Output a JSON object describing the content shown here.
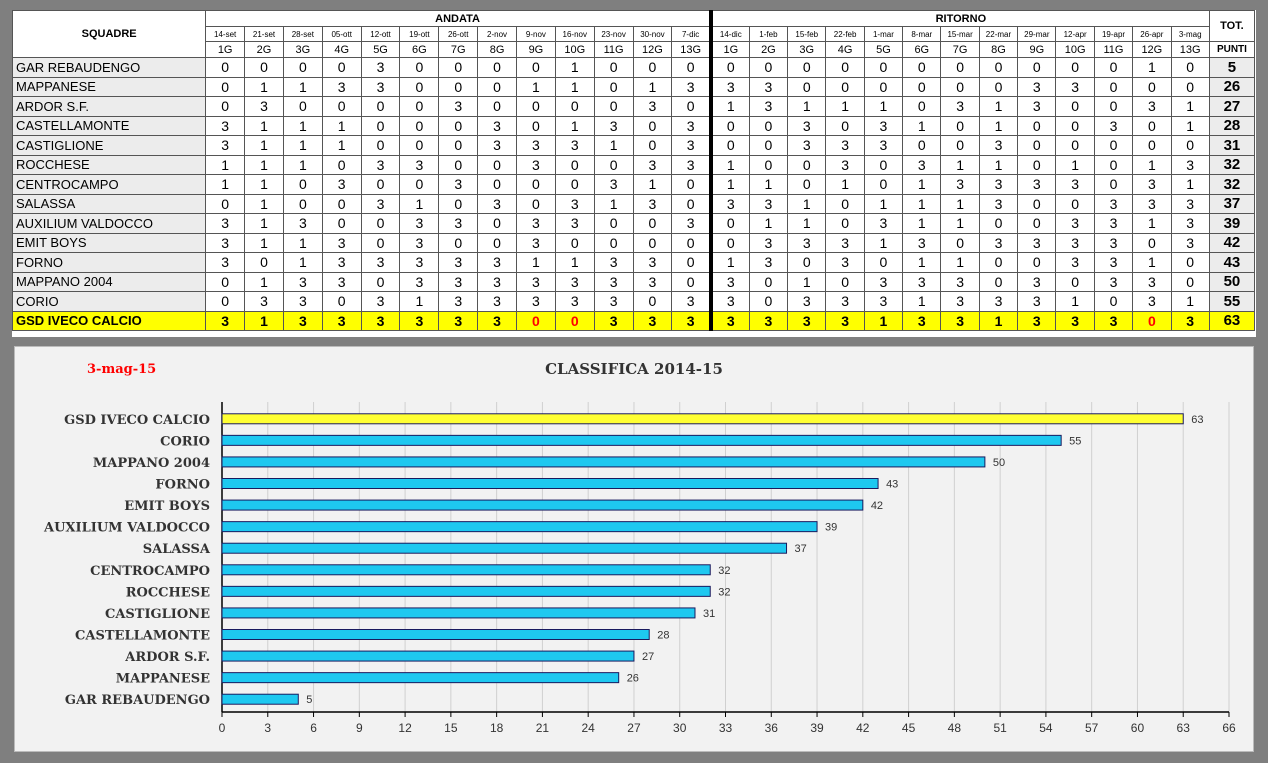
{
  "table": {
    "squadre_label": "SQUADRE",
    "andata_label": "ANDATA",
    "ritorno_label": "RITORNO",
    "tot_label": "TOT.",
    "punti_label": "PUNTI",
    "andata_dates": [
      "14-set",
      "21-set",
      "28-set",
      "05-ott",
      "12-ott",
      "19-ott",
      "26-ott",
      "2-nov",
      "9-nov",
      "16-nov",
      "23-nov",
      "30-nov",
      "7-dic"
    ],
    "ritorno_dates": [
      "14-dic",
      "1-feb",
      "15-feb",
      "22-feb",
      "1-mar",
      "8-mar",
      "15-mar",
      "22-mar",
      "29-mar",
      "12-apr",
      "19-apr",
      "26-apr",
      "3-mag"
    ],
    "rounds": [
      "1G",
      "2G",
      "3G",
      "4G",
      "5G",
      "6G",
      "7G",
      "8G",
      "9G",
      "10G",
      "11G",
      "12G",
      "13G"
    ],
    "rows": [
      {
        "name": "GAR REBAUDENGO",
        "andata": [
          "0",
          "0",
          "0",
          "0",
          "3",
          "0",
          "0",
          "0",
          "0",
          "1",
          "0",
          "0",
          "0"
        ],
        "ritorno": [
          "0",
          "0",
          "0",
          "0",
          "0",
          "0",
          "0",
          "0",
          "0",
          "0",
          "0",
          "1",
          "0"
        ],
        "tot": "5"
      },
      {
        "name": "MAPPANESE",
        "andata": [
          "0",
          "1",
          "1",
          "3",
          "3",
          "0",
          "0",
          "0",
          "1",
          "1",
          "0",
          "1",
          "3"
        ],
        "ritorno": [
          "3",
          "3",
          "0",
          "0",
          "0",
          "0",
          "0",
          "0",
          "3",
          "3",
          "0",
          "0",
          "0"
        ],
        "tot": "26"
      },
      {
        "name": "ARDOR S.F.",
        "andata": [
          "0",
          "3",
          "0",
          "0",
          "0",
          "0",
          "3",
          "0",
          "0",
          "0",
          "0",
          "3",
          "0"
        ],
        "ritorno": [
          "1",
          "3",
          "1",
          "1",
          "1",
          "0",
          "3",
          "1",
          "3",
          "0",
          "0",
          "3",
          "1"
        ],
        "tot": "27"
      },
      {
        "name": "CASTELLAMONTE",
        "andata": [
          "3",
          "1",
          "1",
          "1",
          "0",
          "0",
          "0",
          "3",
          "0",
          "1",
          "3",
          "0",
          "3"
        ],
        "ritorno": [
          "0",
          "0",
          "3",
          "0",
          "3",
          "1",
          "0",
          "1",
          "0",
          "0",
          "3",
          "0",
          "1"
        ],
        "tot": "28"
      },
      {
        "name": "CASTIGLIONE",
        "andata": [
          "3",
          "1",
          "1",
          "1",
          "0",
          "0",
          "0",
          "3",
          "3",
          "3",
          "1",
          "0",
          "3"
        ],
        "ritorno": [
          "0",
          "0",
          "3",
          "3",
          "3",
          "0",
          "0",
          "3",
          "0",
          "0",
          "0",
          "0",
          "0"
        ],
        "tot": "31"
      },
      {
        "name": "ROCCHESE",
        "andata": [
          "1",
          "1",
          "1",
          "0",
          "3",
          "3",
          "0",
          "0",
          "3",
          "0",
          "0",
          "3",
          "3"
        ],
        "ritorno": [
          "1",
          "0",
          "0",
          "3",
          "0",
          "3",
          "1",
          "1",
          "0",
          "1",
          "0",
          "1",
          "3"
        ],
        "tot": "32"
      },
      {
        "name": "CENTROCAMPO",
        "andata": [
          "1",
          "1",
          "0",
          "3",
          "0",
          "0",
          "3",
          "0",
          "0",
          "0",
          "3",
          "1",
          "0"
        ],
        "ritorno": [
          "1",
          "1",
          "0",
          "1",
          "0",
          "1",
          "3",
          "3",
          "3",
          "3",
          "0",
          "3",
          "1"
        ],
        "tot": "32"
      },
      {
        "name": "SALASSA",
        "andata": [
          "0",
          "1",
          "0",
          "0",
          "3",
          "1",
          "0",
          "3",
          "0",
          "3",
          "1",
          "3",
          "0"
        ],
        "ritorno": [
          "3",
          "3",
          "1",
          "0",
          "1",
          "1",
          "1",
          "3",
          "0",
          "0",
          "3",
          "3",
          "3"
        ],
        "tot": "37"
      },
      {
        "name": "AUXILIUM VALDOCCO",
        "andata": [
          "3",
          "1",
          "3",
          "0",
          "0",
          "3",
          "3",
          "0",
          "3",
          "3",
          "0",
          "0",
          "3"
        ],
        "ritorno": [
          "0",
          "1",
          "1",
          "0",
          "3",
          "1",
          "1",
          "0",
          "0",
          "3",
          "3",
          "1",
          "3"
        ],
        "tot": "39"
      },
      {
        "name": "EMIT BOYS",
        "andata": [
          "3",
          "1",
          "1",
          "3",
          "0",
          "3",
          "0",
          "0",
          "3",
          "0",
          "0",
          "0",
          "0"
        ],
        "ritorno": [
          "0",
          "3",
          "3",
          "3",
          "1",
          "3",
          "0",
          "3",
          "3",
          "3",
          "3",
          "0",
          "3"
        ],
        "tot": "42"
      },
      {
        "name": "FORNO",
        "andata": [
          "3",
          "0",
          "1",
          "3",
          "3",
          "3",
          "3",
          "3",
          "1",
          "1",
          "3",
          "3",
          "0"
        ],
        "ritorno": [
          "1",
          "3",
          "0",
          "3",
          "0",
          "1",
          "1",
          "0",
          "0",
          "3",
          "3",
          "1",
          "0"
        ],
        "tot": "43"
      },
      {
        "name": "MAPPANO 2004",
        "andata": [
          "0",
          "1",
          "3",
          "3",
          "0",
          "3",
          "3",
          "3",
          "3",
          "3",
          "3",
          "3",
          "0"
        ],
        "ritorno": [
          "3",
          "0",
          "1",
          "0",
          "3",
          "3",
          "3",
          "0",
          "3",
          "0",
          "3",
          "3",
          "0"
        ],
        "tot": "50"
      },
      {
        "name": "CORIO",
        "andata": [
          "0",
          "3",
          "3",
          "0",
          "3",
          "1",
          "3",
          "3",
          "3",
          "3",
          "3",
          "0",
          "3"
        ],
        "ritorno": [
          "3",
          "0",
          "3",
          "3",
          "3",
          "1",
          "3",
          "3",
          "3",
          "1",
          "0",
          "3",
          "1"
        ],
        "tot": "55"
      },
      {
        "name": "GSD IVECO CALCIO",
        "andata": [
          "3",
          "1",
          "3",
          "3",
          "3",
          "3",
          "3",
          "3",
          "0",
          "0",
          "3",
          "3",
          "3"
        ],
        "ritorno": [
          "3",
          "3",
          "3",
          "3",
          "1",
          "3",
          "3",
          "1",
          "3",
          "3",
          "3",
          "0",
          "3"
        ],
        "tot": "63",
        "highlight": true
      }
    ]
  },
  "chart_data": {
    "type": "bar",
    "orientation": "horizontal",
    "title": "CLASSIFICA 2014-15",
    "date_label": "3-mag-15",
    "categories": [
      "GSD IVECO CALCIO",
      "CORIO",
      "MAPPANO 2004",
      "FORNO",
      "EMIT BOYS",
      "AUXILIUM VALDOCCO",
      "SALASSA",
      "CENTROCAMPO",
      "ROCCHESE",
      "CASTIGLIONE",
      "CASTELLAMONTE",
      "ARDOR S.F.",
      "MAPPANESE",
      "GAR REBAUDENGO"
    ],
    "values": [
      63,
      55,
      50,
      43,
      42,
      39,
      37,
      32,
      32,
      31,
      28,
      27,
      26,
      5
    ],
    "xlim": [
      0,
      66
    ],
    "xticks": [
      "0",
      "3",
      "6",
      "9",
      "12",
      "15",
      "18",
      "21",
      "24",
      "27",
      "30",
      "33",
      "36",
      "39",
      "42",
      "45",
      "48",
      "51",
      "54",
      "57",
      "60",
      "63",
      "66"
    ],
    "grid": true,
    "colors": {
      "bar": "#1ec8f0",
      "highlight_bar": "#ffff33",
      "bar_edge": "#1a1a5e",
      "date": "#ff0000",
      "grid": "#d0d0d0"
    }
  }
}
